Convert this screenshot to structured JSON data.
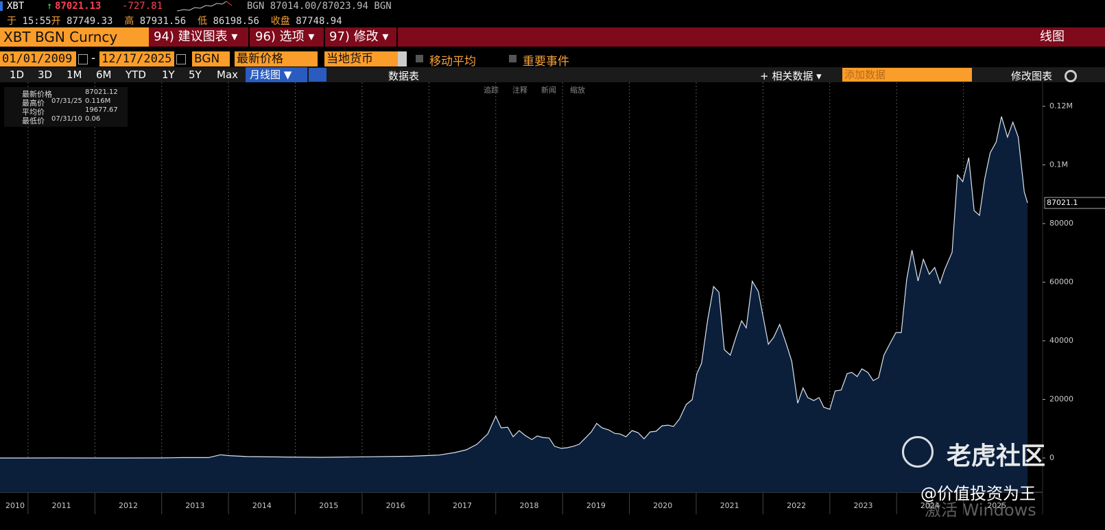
{
  "header": {
    "ticker": "XBT",
    "last_price": "87021.13",
    "change": "-727.81",
    "bid_ask": "BGN 87014.00/87023.94 BGN",
    "quote_row": [
      {
        "label": "于",
        "value": "15:55"
      },
      {
        "label": "开",
        "value": "87749.33"
      },
      {
        "label": "高",
        "value": "87931.56"
      },
      {
        "label": "低",
        "value": "86198.56"
      },
      {
        "label": "收盘",
        "value": "87748.94"
      }
    ]
  },
  "menu_bar": {
    "security": "XBT BGN Curncy",
    "items": [
      "94) 建议图表 ▾",
      "96) 选项 ▾",
      "97) 修改 ▾"
    ],
    "view": "线图"
  },
  "range_bar": {
    "start_date": "01/01/2009",
    "separator": "-",
    "end_date": "12/17/2025",
    "source": "BGN",
    "field": "最新价格",
    "currency": "当地货币",
    "checkboxes": [
      "移动平均",
      "重要事件"
    ]
  },
  "toolbar": {
    "periods": [
      "1D",
      "3D",
      "1M",
      "6M",
      "YTD",
      "1Y",
      "5Y",
      "Max"
    ],
    "chart_style": "月线图 ▼",
    "table_button": "数据表",
    "related": "+ 相关数据 ▾",
    "add_data": "添加数据",
    "edit_chart": "修改图表",
    "chart_tools": [
      "追踪",
      "注释",
      "新闻",
      "缩放"
    ]
  },
  "chart_data": {
    "type": "area",
    "x": [
      2010.58,
      2011.0,
      2011.45,
      2011.9,
      2012.5,
      2013.0,
      2013.3,
      2013.7,
      2013.88,
      2014.02,
      2014.28,
      2014.89,
      2015.4,
      2016.0,
      2016.74,
      2017.15,
      2017.39,
      2017.56,
      2017.72,
      2017.88,
      2018.0,
      2018.08,
      2018.18,
      2018.26,
      2018.35,
      2018.44,
      2018.54,
      2018.62,
      2018.71,
      2018.8,
      2018.88,
      2018.98,
      2019.07,
      2019.16,
      2019.25,
      2019.34,
      2019.43,
      2019.51,
      2019.59,
      2019.69,
      2019.78,
      2019.86,
      2019.95,
      2020.04,
      2020.13,
      2020.22,
      2020.31,
      2020.4,
      2020.49,
      2020.58,
      2020.66,
      2020.75,
      2020.85,
      2020.94,
      2021.01,
      2021.08,
      2021.17,
      2021.26,
      2021.34,
      2021.42,
      2021.51,
      2021.6,
      2021.68,
      2021.75,
      2021.84,
      2021.93,
      2022.01,
      2022.08,
      2022.16,
      2022.25,
      2022.35,
      2022.43,
      2022.52,
      2022.6,
      2022.67,
      2022.76,
      2022.84,
      2022.91,
      2023.0,
      2023.08,
      2023.17,
      2023.26,
      2023.33,
      2023.41,
      2023.48,
      2023.57,
      2023.65,
      2023.73,
      2023.81,
      2023.89,
      2023.99,
      2024.07,
      2024.15,
      2024.23,
      2024.32,
      2024.4,
      2024.49,
      2024.57,
      2024.65,
      2024.72,
      2024.83,
      2024.91,
      2024.99,
      2025.08,
      2025.16,
      2025.24,
      2025.32,
      2025.4,
      2025.49,
      2025.57,
      2025.66,
      2025.74,
      2025.82,
      2025.91,
      2025.96
    ],
    "values": [
      0.06,
      0.3,
      17,
      4,
      7,
      13,
      140,
      130,
      1100,
      800,
      500,
      330,
      230,
      400,
      600,
      1000,
      1870,
      2800,
      4700,
      8200,
      14300,
      10300,
      10500,
      7250,
      9360,
      7700,
      6300,
      7500,
      7000,
      6800,
      4000,
      3300,
      3500,
      4000,
      4700,
      6800,
      8900,
      11800,
      10300,
      9600,
      8400,
      8200,
      7250,
      9350,
      8650,
      6550,
      8890,
      9120,
      11000,
      11200,
      10760,
      13300,
      18250,
      19900,
      28800,
      32300,
      46800,
      58500,
      56600,
      37000,
      35100,
      41600,
      46800,
      44400,
      60300,
      56800,
      47200,
      38800,
      41200,
      45600,
      38800,
      33000,
      18700,
      23900,
      20600,
      19600,
      20600,
      17300,
      16600,
      22900,
      23200,
      28800,
      29200,
      27800,
      30400,
      29200,
      26400,
      27400,
      35100,
      38600,
      42800,
      42800,
      60800,
      70900,
      60400,
      67800,
      62700,
      65000,
      59600,
      64300,
      70200,
      96600,
      94300,
      102500,
      84400,
      82800,
      95400,
      104100,
      107800,
      116500,
      109500,
      114600,
      109500,
      90800,
      87021.12
    ],
    "color": "#dde6f0",
    "fill_color": "#0b1f3b",
    "xlim": [
      2010.58,
      2026.01
    ],
    "xticks": [
      2010,
      2011,
      2012,
      2013,
      2014,
      2015,
      2016,
      2017,
      2018,
      2019,
      2020,
      2021,
      2022,
      2023,
      2024,
      2025
    ],
    "ylim": [
      -11700,
      128200
    ],
    "yticks": [
      0,
      20000,
      40000,
      60000,
      80000,
      {
        "value": 100000,
        "label": "0.1M"
      },
      {
        "value": 120000,
        "label": "0.12M"
      }
    ],
    "xgrid": true,
    "last_value_label": 87021.1,
    "stats": [
      {
        "label": "最新价格",
        "date": null,
        "value": 87021.12,
        "value_label": "87021.12"
      },
      {
        "label": "最高价",
        "date": "07/31/25",
        "value": 116000,
        "value_label": "0.116M"
      },
      {
        "label": "平均价",
        "date": null,
        "value": 19677.67,
        "value_label": "19677.67"
      },
      {
        "label": "最低价",
        "date": "07/31/10",
        "value": 0.06,
        "value_label": "0.06"
      }
    ]
  },
  "watermarks": [
    "老虎社区",
    "@价值投资为王",
    "激活 Windows"
  ]
}
